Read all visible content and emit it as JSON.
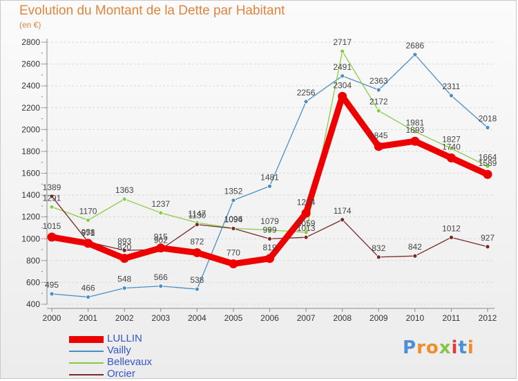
{
  "title": "Evolution du Montant de la Dette par Habitant",
  "subtitle": "(en €)",
  "logo": {
    "text": "Proxiti",
    "colors": [
      "#4a90d9",
      "#f28c28",
      "#f28c28",
      "#8bc34a",
      "#e53935",
      "#4a90d9",
      "#f28c28"
    ]
  },
  "chart_data": {
    "type": "line",
    "x": [
      2000,
      2001,
      2002,
      2003,
      2004,
      2005,
      2006,
      2007,
      2008,
      2009,
      2010,
      2011,
      2012
    ],
    "ylim": [
      400,
      2800
    ],
    "yticks": [
      400,
      600,
      800,
      1000,
      1200,
      1400,
      1600,
      1800,
      2000,
      2200,
      2400,
      2600,
      2800
    ],
    "grid": "horizontal dashed",
    "legend_position": "bottom-left",
    "series": [
      {
        "name": "LULLIN",
        "color": "#ee0000",
        "values": [
          1015,
          958,
          820,
          915,
          872,
          770,
          819,
          1234,
          2304,
          1845,
          1893,
          1740,
          1589
        ]
      },
      {
        "name": "Vailly",
        "color": "#4a8ec6",
        "values": [
          495,
          466,
          548,
          566,
          538,
          1352,
          1481,
          2256,
          2491,
          2363,
          2686,
          2311,
          2018
        ]
      },
      {
        "name": "Bellevaux",
        "color": "#88cc44",
        "values": [
          1291,
          1170,
          1363,
          1237,
          1147,
          1096,
          1079,
          1059,
          2717,
          2172,
          1981,
          1827,
          1664
        ]
      },
      {
        "name": "Orcier",
        "color": "#7a2828",
        "values": [
          1389,
          971,
          893,
          902,
          1130,
          1094,
          999,
          1013,
          1174,
          832,
          842,
          1012,
          927
        ]
      }
    ]
  }
}
